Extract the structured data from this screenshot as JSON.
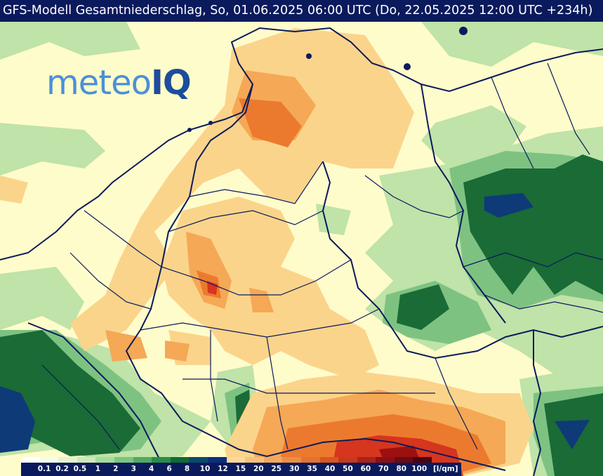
{
  "header": {
    "title": "GFS-Modell Gesamtniederschlag, So, 01.06.2025 06:00 UTC (Do, 22.05.2025 12:00 UTC +234h)"
  },
  "logo": {
    "text_meteo": "meteo",
    "text_iq": "IQ",
    "color_meteo": "#4a90d9",
    "color_iq": "#1c4d9c"
  },
  "legend": {
    "labels": [
      "0.1",
      "0.2",
      "0.5",
      "1",
      "2",
      "3",
      "4",
      "6",
      "8",
      "10",
      "12",
      "15",
      "20",
      "25",
      "30",
      "35",
      "40",
      "50",
      "60",
      "70",
      "80",
      "100"
    ],
    "unit": "[l/qm]",
    "colors": [
      "#ffffff",
      "#f6fbe9",
      "#e6f3cf",
      "#cde9b7",
      "#a6d99a",
      "#7cc57f",
      "#4faa63",
      "#2a8c49",
      "#116b34",
      "#0a4a6e",
      "#0c2f7a",
      "#fbd99a",
      "#f6c27a",
      "#f1a860",
      "#ec8d48",
      "#e57230",
      "#d9561f",
      "#c8391a",
      "#ad2316",
      "#8b1015",
      "#6b0a13",
      "#4c0510"
    ]
  },
  "map": {
    "precip_colors": {
      "light_yellow": "#fffccb",
      "pale_green": "#bfe3a8",
      "mid_green": "#7ec282",
      "dark_green": "#1a6b35",
      "navy": "#0e3a78",
      "light_orange": "#fbd48b",
      "orange": "#f5a855",
      "dark_orange": "#ec7a2e",
      "red": "#d6351e",
      "dark_red": "#9c1010"
    },
    "border_color": "#0b1a5c"
  }
}
